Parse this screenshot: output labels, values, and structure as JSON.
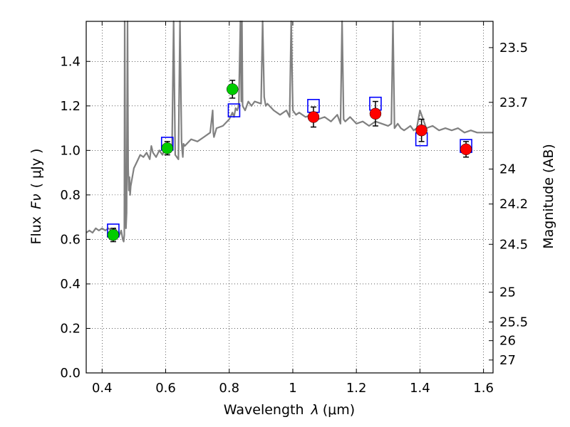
{
  "chart_data": {
    "type": "scatter",
    "xlabel_text": "Wavelength",
    "xlabel_symbol": "λ",
    "xlabel_unit": "(μm)",
    "ylabel_text": "Flux",
    "ylabel_symbol": "Fν",
    "ylabel_unit": "( μJy )",
    "y2label": "Magnitude (AB)",
    "xlim": [
      0.35,
      1.63
    ],
    "ylim": [
      0.0,
      1.58
    ],
    "grid": true,
    "x_ticks": [
      {
        "value": 0.4,
        "label": "0.4"
      },
      {
        "value": 0.6,
        "label": "0.6"
      },
      {
        "value": 0.8,
        "label": "0.8"
      },
      {
        "value": 1.0,
        "label": "1"
      },
      {
        "value": 1.2,
        "label": "1.2"
      },
      {
        "value": 1.4,
        "label": "1.4"
      },
      {
        "value": 1.6,
        "label": "1.6"
      }
    ],
    "y_ticks": [
      {
        "value": 0.0,
        "label": "0.0"
      },
      {
        "value": 0.2,
        "label": "0.2"
      },
      {
        "value": 0.4,
        "label": "0.4"
      },
      {
        "value": 0.6,
        "label": "0.6"
      },
      {
        "value": 0.8,
        "label": "0.8"
      },
      {
        "value": 1.0,
        "label": "1.0"
      },
      {
        "value": 1.2,
        "label": "1.2"
      },
      {
        "value": 1.4,
        "label": "1.4"
      }
    ],
    "y2_ticks": [
      {
        "flux": 1.462,
        "label": "23.5"
      },
      {
        "flux": 1.216,
        "label": "23.7"
      },
      {
        "flux": 0.916,
        "label": "24"
      },
      {
        "flux": 0.759,
        "label": "24.2"
      },
      {
        "flux": 0.578,
        "label": "24.5"
      },
      {
        "flux": 0.363,
        "label": "25"
      },
      {
        "flux": 0.229,
        "label": "25.5"
      },
      {
        "flux": 0.145,
        "label": "26"
      },
      {
        "flux": 0.058,
        "label": "27"
      }
    ],
    "series": [
      {
        "kind": "line",
        "color": "#808080",
        "x": [
          0.35,
          0.36,
          0.37,
          0.38,
          0.39,
          0.4,
          0.41,
          0.42,
          0.43,
          0.44,
          0.45,
          0.455,
          0.46,
          0.465,
          0.468,
          0.47,
          0.471,
          0.473,
          0.475,
          0.477,
          0.48,
          0.482,
          0.484,
          0.486,
          0.488,
          0.49,
          0.5,
          0.51,
          0.52,
          0.53,
          0.54,
          0.55,
          0.555,
          0.56,
          0.57,
          0.58,
          0.59,
          0.6,
          0.62,
          0.625,
          0.63,
          0.64,
          0.645,
          0.65,
          0.652,
          0.654,
          0.656,
          0.66,
          0.68,
          0.7,
          0.72,
          0.74,
          0.748,
          0.75,
          0.752,
          0.76,
          0.78,
          0.8,
          0.81,
          0.815,
          0.82,
          0.825,
          0.83,
          0.835,
          0.838,
          0.84,
          0.842,
          0.85,
          0.86,
          0.87,
          0.88,
          0.9,
          0.905,
          0.91,
          0.915,
          0.92,
          0.94,
          0.96,
          0.98,
          0.99,
          0.995,
          1.0,
          1.01,
          1.02,
          1.04,
          1.06,
          1.08,
          1.1,
          1.12,
          1.14,
          1.15,
          1.155,
          1.16,
          1.165,
          1.18,
          1.2,
          1.22,
          1.24,
          1.26,
          1.28,
          1.3,
          1.31,
          1.315,
          1.32,
          1.33,
          1.34,
          1.35,
          1.36,
          1.37,
          1.38,
          1.39,
          1.4,
          1.42,
          1.44,
          1.46,
          1.48,
          1.5,
          1.52,
          1.54,
          1.56,
          1.58,
          1.6,
          1.63
        ],
        "y": [
          0.63,
          0.64,
          0.63,
          0.65,
          0.64,
          0.65,
          0.64,
          0.65,
          0.64,
          0.65,
          0.63,
          0.62,
          0.64,
          0.6,
          0.59,
          0.62,
          1.58,
          0.85,
          0.65,
          0.72,
          1.58,
          0.92,
          0.82,
          0.88,
          0.8,
          0.84,
          0.92,
          0.95,
          0.98,
          0.97,
          0.99,
          0.96,
          1.02,
          0.99,
          0.97,
          1.0,
          0.98,
          1.02,
          1.0,
          1.58,
          0.98,
          0.96,
          1.58,
          1.04,
          1.0,
          0.97,
          1.03,
          1.02,
          1.05,
          1.04,
          1.06,
          1.08,
          1.18,
          1.08,
          1.06,
          1.1,
          1.11,
          1.14,
          1.17,
          1.15,
          1.19,
          1.18,
          1.2,
          1.58,
          1.22,
          1.58,
          1.2,
          1.18,
          1.22,
          1.2,
          1.22,
          1.21,
          1.58,
          1.24,
          1.2,
          1.21,
          1.18,
          1.16,
          1.18,
          1.15,
          1.58,
          1.18,
          1.16,
          1.17,
          1.15,
          1.16,
          1.14,
          1.15,
          1.13,
          1.16,
          1.12,
          1.58,
          1.14,
          1.13,
          1.15,
          1.12,
          1.13,
          1.11,
          1.13,
          1.12,
          1.11,
          1.12,
          1.58,
          1.1,
          1.12,
          1.1,
          1.09,
          1.1,
          1.11,
          1.09,
          1.1,
          1.18,
          1.1,
          1.11,
          1.09,
          1.1,
          1.09,
          1.1,
          1.08,
          1.09,
          1.08,
          1.08,
          1.08
        ]
      },
      {
        "kind": "open-square",
        "color": "#0000ff",
        "x": [
          0.435,
          0.605,
          0.815,
          1.065,
          1.26,
          1.405,
          1.545
        ],
        "y": [
          0.64,
          1.03,
          1.18,
          1.2,
          1.21,
          1.05,
          1.02
        ]
      },
      {
        "kind": "filled-circle",
        "color": "#00cc00",
        "x": [
          0.435,
          0.605,
          0.81
        ],
        "y": [
          0.62,
          1.01,
          1.275
        ],
        "yerr": [
          0.03,
          0.03,
          0.04
        ]
      },
      {
        "kind": "filled-circle",
        "color": "#ff0000",
        "x": [
          1.065,
          1.26,
          1.405,
          1.545
        ],
        "y": [
          1.15,
          1.165,
          1.09,
          1.005
        ],
        "yerr": [
          0.045,
          0.055,
          0.05,
          0.035
        ]
      }
    ]
  }
}
